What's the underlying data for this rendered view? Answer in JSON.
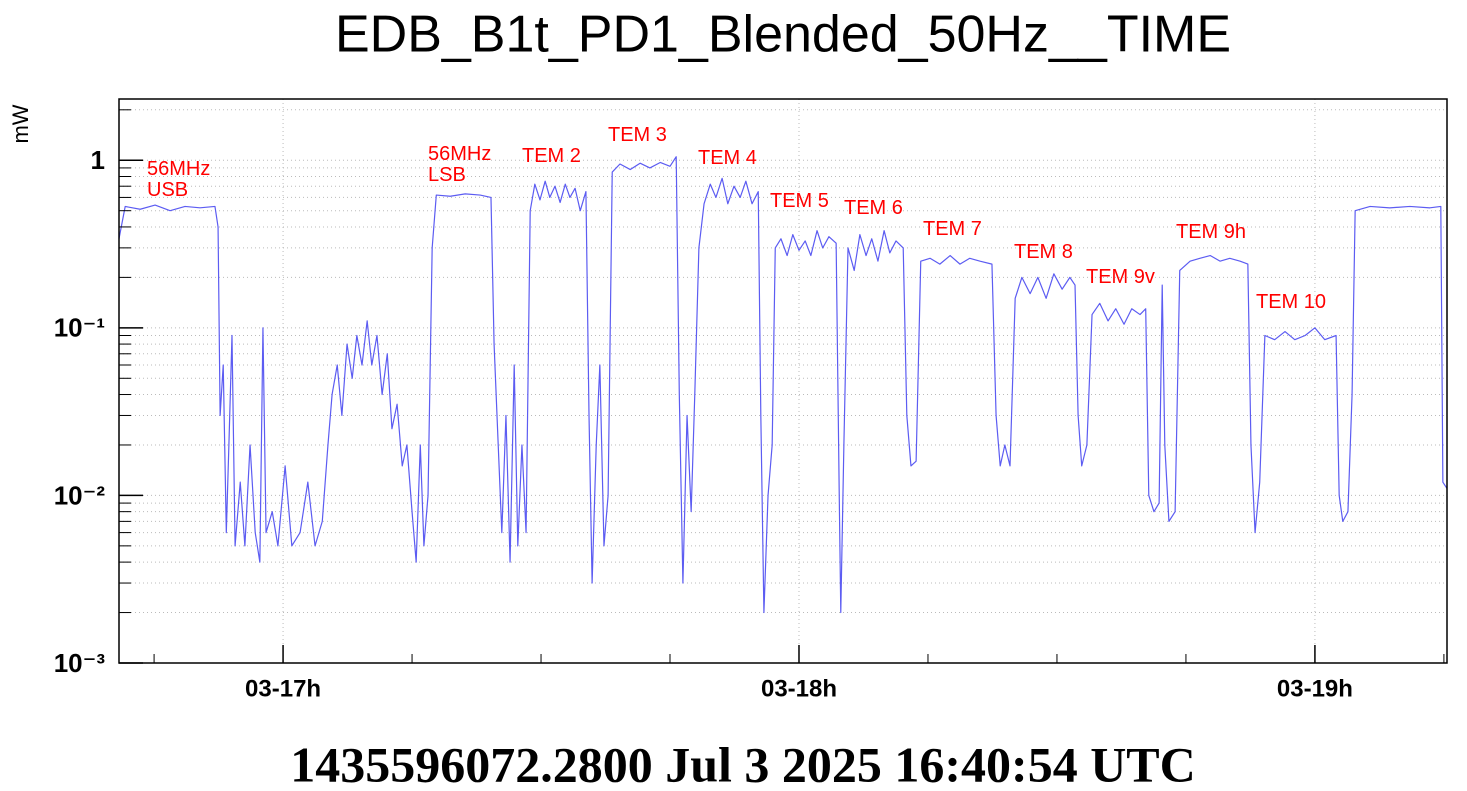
{
  "chart_data": {
    "type": "line",
    "title": "EDB_B1t_PD1_Blended_50Hz__TIME",
    "y_label": "mW",
    "footer": "1435596072.2800 Jul 3 2025 16:40:54 UTC",
    "color": "#5c5cf2",
    "log_y": true,
    "grid": true,
    "xlim": [
      16.682,
      19.256
    ],
    "xticks": [
      {
        "value": 17,
        "label": "03-17h"
      },
      {
        "value": 18,
        "label": "03-18h"
      },
      {
        "value": 19,
        "label": "03-19h"
      }
    ],
    "xminorticks": [
      16.75,
      17.25,
      17.5,
      17.75,
      18.25,
      18.5,
      18.75,
      19.25
    ],
    "ylim": [
      0.001,
      2.32
    ],
    "yticks": [
      {
        "value": 0.001,
        "label": "10⁻³"
      },
      {
        "value": 0.01,
        "label": "10⁻²"
      },
      {
        "value": 0.1,
        "label": "10⁻¹"
      },
      1
    ],
    "yminorticks": [
      0.002,
      0.003,
      0.004,
      0.005,
      0.006,
      0.007,
      0.008,
      0.009,
      0.02,
      0.03,
      0.04,
      0.05,
      0.06,
      0.07,
      0.08,
      0.09,
      0.2,
      0.3,
      0.4,
      0.5,
      0.6,
      0.7,
      0.8,
      0.9,
      2
    ],
    "annotations": [
      "56MHz",
      "USB",
      "56MHz",
      "LSB",
      "TEM 2",
      "TEM 3",
      "TEM 4",
      "TEM 5",
      "TEM 6",
      "TEM 7",
      "TEM 8",
      "TEM 9v",
      "TEM 9h",
      "TEM 10"
    ],
    "x": [
      16.682,
      16.694,
      16.723,
      16.752,
      16.781,
      16.81,
      16.839,
      16.868,
      16.874,
      16.878,
      16.884,
      16.89,
      16.895,
      16.901,
      16.907,
      16.917,
      16.926,
      16.936,
      16.946,
      16.955,
      16.961,
      16.967,
      16.979,
      16.99,
      17.004,
      17.017,
      17.033,
      17.048,
      17.062,
      17.076,
      17.087,
      17.095,
      17.105,
      17.114,
      17.124,
      17.134,
      17.143,
      17.153,
      17.163,
      17.172,
      17.182,
      17.192,
      17.202,
      17.211,
      17.221,
      17.231,
      17.24,
      17.25,
      17.258,
      17.266,
      17.273,
      17.281,
      17.289,
      17.297,
      17.324,
      17.353,
      17.382,
      17.403,
      17.409,
      17.417,
      17.424,
      17.432,
      17.44,
      17.448,
      17.455,
      17.463,
      17.471,
      17.479,
      17.488,
      17.498,
      17.508,
      17.517,
      17.527,
      17.537,
      17.547,
      17.556,
      17.566,
      17.576,
      17.587,
      17.593,
      17.599,
      17.607,
      17.614,
      17.622,
      17.63,
      17.638,
      17.653,
      17.673,
      17.692,
      17.711,
      17.731,
      17.75,
      17.762,
      17.768,
      17.775,
      17.783,
      17.791,
      17.798,
      17.806,
      17.816,
      17.828,
      17.839,
      17.851,
      17.862,
      17.874,
      17.886,
      17.897,
      17.909,
      17.921,
      17.926,
      17.932,
      17.94,
      17.948,
      17.954,
      17.965,
      17.977,
      17.988,
      18.0,
      18.012,
      18.023,
      18.035,
      18.046,
      18.058,
      18.072,
      18.078,
      18.081,
      18.087,
      18.095,
      18.107,
      18.118,
      18.13,
      18.141,
      18.153,
      18.165,
      18.176,
      18.188,
      18.202,
      18.209,
      18.217,
      18.227,
      18.236,
      18.254,
      18.273,
      18.293,
      18.312,
      18.331,
      18.351,
      18.374,
      18.382,
      18.39,
      18.399,
      18.409,
      18.419,
      18.432,
      18.448,
      18.463,
      18.479,
      18.494,
      18.51,
      18.525,
      18.535,
      18.541,
      18.548,
      18.558,
      18.568,
      18.583,
      18.599,
      18.614,
      18.63,
      18.645,
      18.661,
      18.672,
      18.678,
      18.688,
      18.698,
      18.704,
      18.709,
      18.717,
      18.729,
      18.738,
      18.758,
      18.777,
      18.797,
      18.816,
      18.835,
      18.855,
      18.87,
      18.876,
      18.884,
      18.893,
      18.903,
      18.922,
      18.942,
      18.961,
      18.981,
      19.0,
      19.019,
      19.041,
      19.047,
      19.054,
      19.064,
      19.072,
      19.078,
      19.107,
      19.145,
      19.184,
      19.223,
      19.244,
      19.248,
      19.256
    ],
    "values": [
      0.34,
      0.53,
      0.51,
      0.54,
      0.5,
      0.53,
      0.52,
      0.53,
      0.4,
      0.03,
      0.06,
      0.006,
      0.02,
      0.09,
      0.005,
      0.012,
      0.005,
      0.02,
      0.006,
      0.004,
      0.1,
      0.006,
      0.008,
      0.005,
      0.015,
      0.005,
      0.006,
      0.012,
      0.005,
      0.007,
      0.02,
      0.04,
      0.06,
      0.03,
      0.08,
      0.05,
      0.09,
      0.06,
      0.11,
      0.06,
      0.09,
      0.04,
      0.07,
      0.025,
      0.035,
      0.015,
      0.02,
      0.008,
      0.004,
      0.02,
      0.005,
      0.01,
      0.3,
      0.62,
      0.61,
      0.63,
      0.62,
      0.6,
      0.08,
      0.02,
      0.006,
      0.03,
      0.004,
      0.06,
      0.005,
      0.02,
      0.006,
      0.5,
      0.72,
      0.58,
      0.75,
      0.6,
      0.7,
      0.56,
      0.72,
      0.6,
      0.68,
      0.5,
      0.65,
      0.03,
      0.003,
      0.02,
      0.06,
      0.005,
      0.01,
      0.85,
      0.95,
      0.88,
      0.96,
      0.9,
      0.97,
      0.92,
      1.05,
      0.04,
      0.003,
      0.03,
      0.008,
      0.04,
      0.3,
      0.55,
      0.72,
      0.6,
      0.78,
      0.55,
      0.7,
      0.6,
      0.75,
      0.55,
      0.65,
      0.03,
      0.002,
      0.01,
      0.02,
      0.3,
      0.34,
      0.27,
      0.36,
      0.29,
      0.33,
      0.27,
      0.38,
      0.3,
      0.35,
      0.32,
      0.01,
      0.002,
      0.02,
      0.3,
      0.22,
      0.36,
      0.27,
      0.34,
      0.25,
      0.38,
      0.28,
      0.33,
      0.3,
      0.03,
      0.015,
      0.016,
      0.25,
      0.26,
      0.24,
      0.27,
      0.24,
      0.26,
      0.25,
      0.24,
      0.03,
      0.015,
      0.02,
      0.015,
      0.15,
      0.2,
      0.16,
      0.2,
      0.15,
      0.21,
      0.17,
      0.2,
      0.18,
      0.03,
      0.015,
      0.02,
      0.12,
      0.14,
      0.11,
      0.13,
      0.105,
      0.13,
      0.12,
      0.13,
      0.01,
      0.008,
      0.009,
      0.18,
      0.02,
      0.007,
      0.008,
      0.22,
      0.25,
      0.26,
      0.27,
      0.25,
      0.26,
      0.25,
      0.24,
      0.02,
      0.006,
      0.012,
      0.09,
      0.085,
      0.095,
      0.085,
      0.09,
      0.1,
      0.085,
      0.09,
      0.01,
      0.007,
      0.008,
      0.04,
      0.5,
      0.53,
      0.52,
      0.53,
      0.52,
      0.53,
      0.012,
      0.011
    ]
  }
}
